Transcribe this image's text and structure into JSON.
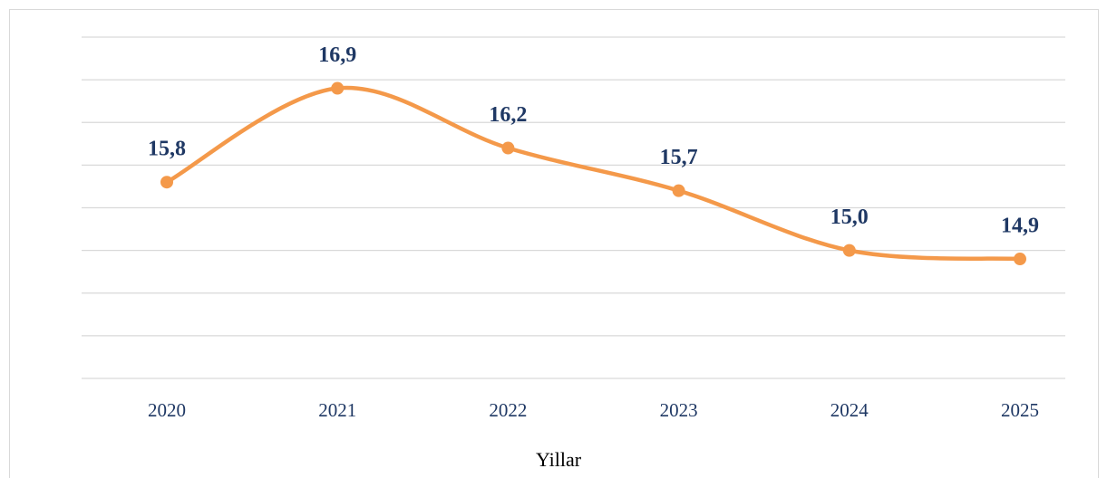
{
  "chart_data": {
    "type": "line",
    "x_label": "Yillar",
    "categories": [
      "2020",
      "2021",
      "2022",
      "2023",
      "2024",
      "2025"
    ],
    "series": [
      {
        "name": null,
        "color": "#f4994a",
        "values": [
          15.8,
          16.9,
          16.2,
          15.7,
          15.0,
          14.9
        ],
        "value_labels": [
          "15,8",
          "16,9",
          "16,2",
          "15,7",
          "15,0",
          "14,9"
        ]
      }
    ],
    "ylim": [
      13.5,
      17.5
    ],
    "yticks": [
      13.5,
      14,
      14.5,
      15,
      15.5,
      16,
      16.5,
      17,
      17.5
    ],
    "grid": true,
    "smooth": true
  }
}
